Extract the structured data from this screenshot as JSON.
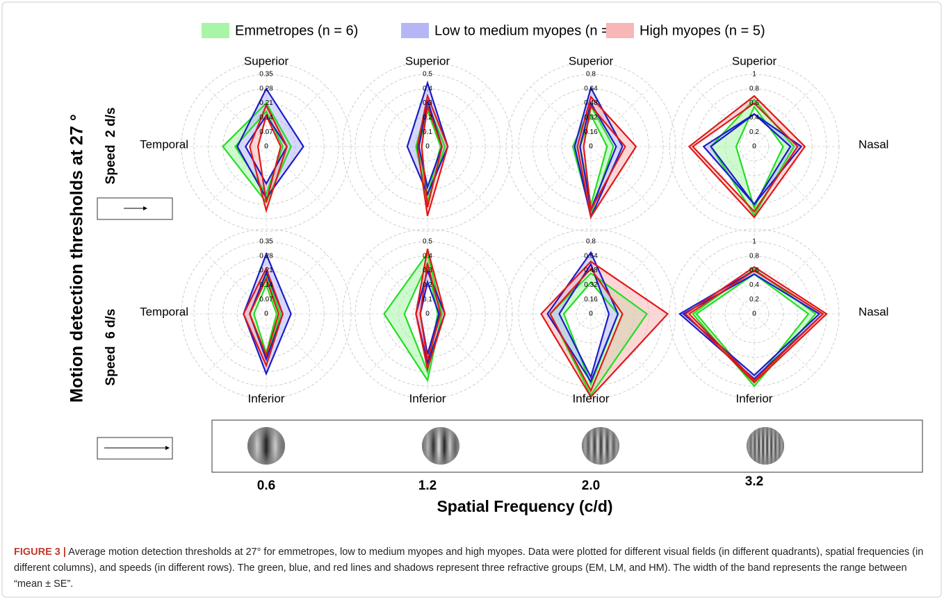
{
  "legend": [
    {
      "name": "Emmetropes (n = 6)",
      "color": "#a8f5a8",
      "line": "#22dd22"
    },
    {
      "name": "Low to medium myopes (n = 6)",
      "color": "#b6b6f7",
      "line": "#1c1cc8"
    },
    {
      "name": "High myopes (n = 5)",
      "color": "#f8b6b6",
      "line": "#e01818"
    }
  ],
  "directions": {
    "superior": "Superior",
    "inferior": "Inferior",
    "temporal": "Temporal",
    "nasal": "Nasal"
  },
  "rows": [
    "Speed  2 d/s",
    "Speed  6 d/s"
  ],
  "y_title": "Motion detection thresholds at 27 °",
  "spatial_frequencies": [
    "0.6",
    "1.2",
    "2.0",
    "3.2"
  ],
  "x_title": "Spatial Frequency (c/d)",
  "caption": {
    "label": "FIGURE 3 |",
    "text": "Average motion detection thresholds at 27° for emmetropes, low to medium myopes and high myopes. Data were plotted for different visual fields (in different quadrants), spatial frequencies (in different columns), and speeds (in different rows). The green, blue, and red lines and shadows represent three refractive groups (EM, LM, and HM). The width of the band represents the range between “mean ± SE”."
  },
  "chart_data": [
    {
      "type": "radar",
      "rlim": [
        0,
        0.35
      ],
      "rticks": [
        0,
        0.07,
        0.14,
        0.21,
        0.28,
        0.35
      ],
      "series": [
        {
          "upper": [
            0.21,
            0.12,
            0.27,
            0.21
          ],
          "lower": [
            0.17,
            0.08,
            0.23,
            0.15
          ]
        },
        {
          "upper": [
            0.28,
            0.18,
            0.25,
            0.14
          ],
          "lower": [
            0.15,
            0.1,
            0.18,
            0.1
          ]
        },
        {
          "upper": [
            0.2,
            0.1,
            0.31,
            0.08
          ],
          "lower": [
            0.15,
            0.07,
            0.27,
            0.04
          ]
        }
      ]
    },
    {
      "type": "radar",
      "rlim": [
        0,
        0.5
      ],
      "rticks": [
        0,
        0.1,
        0.2,
        0.3,
        0.4,
        0.5
      ],
      "series": [
        {
          "upper": [
            0.3,
            0.12,
            0.38,
            0.08
          ],
          "lower": [
            0.25,
            0.09,
            0.34,
            0.06
          ]
        },
        {
          "upper": [
            0.44,
            0.14,
            0.33,
            0.14
          ],
          "lower": [
            0.32,
            0.1,
            0.28,
            0.06
          ]
        },
        {
          "upper": [
            0.35,
            0.14,
            0.48,
            0.07
          ],
          "lower": [
            0.28,
            0.1,
            0.42,
            0.04
          ]
        }
      ]
    },
    {
      "type": "radar",
      "rlim": [
        0,
        0.8
      ],
      "rticks": [
        0,
        0.16,
        0.32,
        0.48,
        0.64,
        0.8
      ],
      "series": [
        {
          "upper": [
            0.45,
            0.25,
            0.75,
            0.2
          ],
          "lower": [
            0.35,
            0.18,
            0.65,
            0.12
          ]
        },
        {
          "upper": [
            0.65,
            0.35,
            0.78,
            0.18
          ],
          "lower": [
            0.48,
            0.28,
            0.7,
            0.12
          ]
        },
        {
          "upper": [
            0.55,
            0.5,
            0.78,
            0.15
          ],
          "lower": [
            0.45,
            0.38,
            0.7,
            0.08
          ]
        }
      ]
    },
    {
      "type": "radar",
      "rlim": [
        0,
        1
      ],
      "rticks": [
        0,
        0.2,
        0.4,
        0.6,
        0.8,
        1
      ],
      "series": [
        {
          "upper": [
            0.65,
            0.55,
            0.95,
            0.6
          ],
          "lower": [
            0.55,
            0.4,
            0.85,
            0.25
          ]
        },
        {
          "upper": [
            0.45,
            0.65,
            0.8,
            0.7
          ],
          "lower": [
            0.45,
            0.5,
            0.8,
            0.6
          ]
        },
        {
          "upper": [
            0.7,
            0.7,
            0.98,
            0.9
          ],
          "lower": [
            0.6,
            0.6,
            0.9,
            0.85
          ]
        }
      ]
    },
    {
      "type": "radar",
      "rlim": [
        0,
        0.35
      ],
      "rticks": [
        0,
        0.07,
        0.14,
        0.21,
        0.28,
        0.35
      ],
      "series": [
        {
          "upper": [
            0.18,
            0.07,
            0.22,
            0.08
          ],
          "lower": [
            0.14,
            0.05,
            0.19,
            0.06
          ]
        },
        {
          "upper": [
            0.29,
            0.12,
            0.29,
            0.11
          ],
          "lower": [
            0.2,
            0.08,
            0.22,
            0.08
          ]
        },
        {
          "upper": [
            0.22,
            0.08,
            0.25,
            0.11
          ],
          "lower": [
            0.17,
            0.06,
            0.2,
            0.08
          ]
        }
      ]
    },
    {
      "type": "radar",
      "rlim": [
        0,
        0.5
      ],
      "rticks": [
        0,
        0.1,
        0.2,
        0.3,
        0.4,
        0.5
      ],
      "series": [
        {
          "upper": [
            0.42,
            0.1,
            0.46,
            0.3
          ],
          "lower": [
            0.35,
            0.07,
            0.4,
            0.16
          ]
        },
        {
          "upper": [
            0.3,
            0.12,
            0.34,
            0.08
          ],
          "lower": [
            0.22,
            0.08,
            0.28,
            0.05
          ]
        },
        {
          "upper": [
            0.45,
            0.12,
            0.38,
            0.08
          ],
          "lower": [
            0.35,
            0.09,
            0.32,
            0.05
          ]
        }
      ]
    },
    {
      "type": "radar",
      "rlim": [
        0,
        0.8
      ],
      "rticks": [
        0,
        0.16,
        0.32,
        0.48,
        0.64,
        0.8
      ],
      "series": [
        {
          "upper": [
            0.45,
            0.62,
            0.9,
            0.45
          ],
          "lower": [
            0.35,
            0.3,
            0.78,
            0.3
          ]
        },
        {
          "upper": [
            0.68,
            0.3,
            0.75,
            0.48
          ],
          "lower": [
            0.55,
            0.2,
            0.7,
            0.35
          ]
        },
        {
          "upper": [
            0.58,
            0.85,
            0.92,
            0.55
          ],
          "lower": [
            0.5,
            0.35,
            0.85,
            0.45
          ]
        }
      ]
    },
    {
      "type": "radar",
      "rlim": [
        0,
        1
      ],
      "rticks": [
        0,
        0.2,
        0.4,
        0.6,
        0.8,
        1
      ],
      "series": [
        {
          "upper": [
            0.62,
            0.85,
            1,
            0.85
          ],
          "lower": [
            0.55,
            0.75,
            0.95,
            0.8
          ]
        },
        {
          "upper": [
            0.6,
            0.95,
            0.9,
            1.03
          ],
          "lower": [
            0.55,
            0.9,
            0.85,
            0.98
          ]
        },
        {
          "upper": [
            0.65,
            1,
            0.95,
            0.95
          ],
          "lower": [
            0.6,
            0.95,
            0.92,
            0.9
          ]
        }
      ]
    }
  ]
}
